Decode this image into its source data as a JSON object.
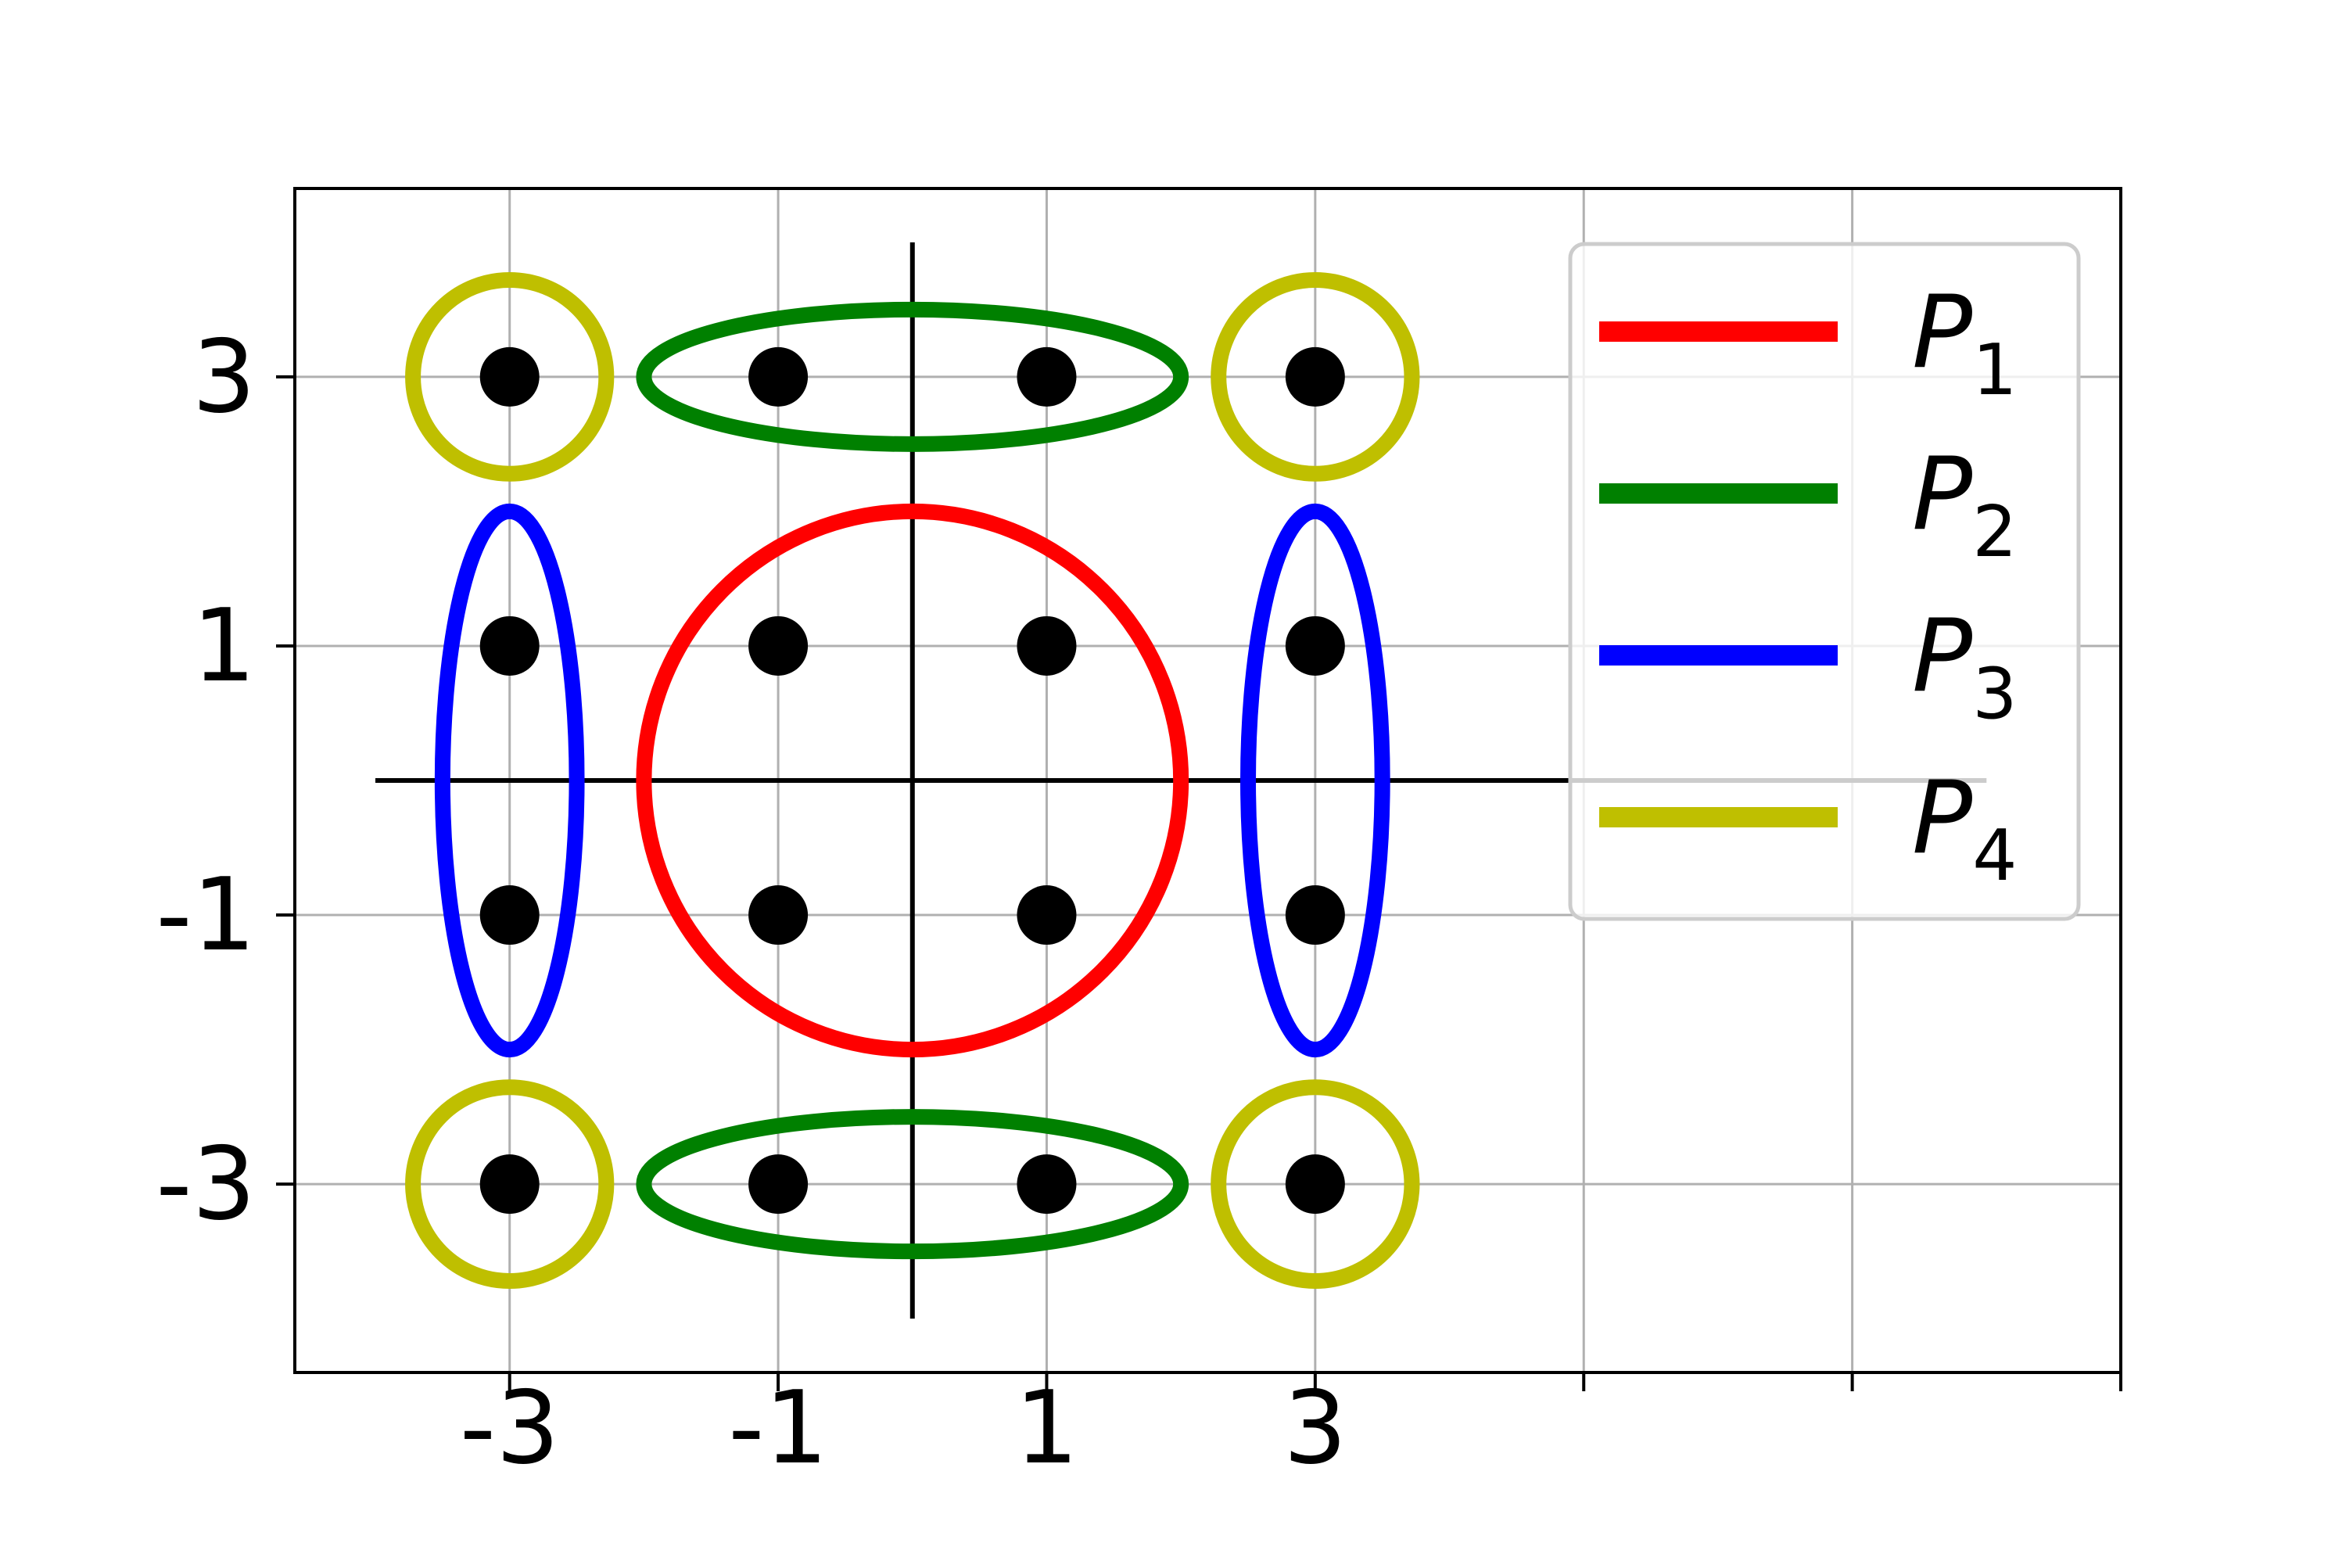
{
  "chart_data": {
    "type": "scatter",
    "title": "",
    "xlabel": "",
    "ylabel": "",
    "xlim": [
      -4.6,
      9
    ],
    "ylim": [
      -4.4,
      4.4
    ],
    "grid": true,
    "x_ticks": [
      -3,
      -1,
      1,
      3,
      5,
      7,
      9
    ],
    "x_tick_labels": [
      "-3",
      "-1",
      "1",
      "3",
      "",
      "",
      ""
    ],
    "y_ticks": [
      -3,
      -1,
      1,
      3
    ],
    "y_tick_labels": [
      "-3",
      "-1",
      "1",
      "3"
    ],
    "points": [
      {
        "x": -3,
        "y": 3
      },
      {
        "x": -1,
        "y": 3
      },
      {
        "x": 1,
        "y": 3
      },
      {
        "x": 3,
        "y": 3
      },
      {
        "x": -3,
        "y": 1
      },
      {
        "x": -1,
        "y": 1
      },
      {
        "x": 1,
        "y": 1
      },
      {
        "x": 3,
        "y": 1
      },
      {
        "x": -3,
        "y": -1
      },
      {
        "x": -1,
        "y": -1
      },
      {
        "x": 1,
        "y": -1
      },
      {
        "x": 3,
        "y": -1
      },
      {
        "x": -3,
        "y": -3
      },
      {
        "x": -1,
        "y": -3
      },
      {
        "x": 1,
        "y": -3
      },
      {
        "x": 3,
        "y": -3
      }
    ],
    "axis_lines": {
      "horizontal": {
        "y": 0,
        "x_from": -4,
        "x_to": 8
      },
      "vertical": {
        "x": 0,
        "y_from": -4,
        "y_to": 4
      }
    },
    "series": [
      {
        "name": "P",
        "subscript": "1",
        "color": "#ff0000",
        "regions": [
          {
            "cx": 0,
            "cy": 0,
            "rx": 2,
            "ry": 2
          }
        ]
      },
      {
        "name": "P",
        "subscript": "2",
        "color": "#008000",
        "regions": [
          {
            "cx": 0,
            "cy": 3,
            "rx": 2,
            "ry": 0.5
          },
          {
            "cx": 0,
            "cy": -3,
            "rx": 2,
            "ry": 0.5
          }
        ]
      },
      {
        "name": "P",
        "subscript": "3",
        "color": "#0000ff",
        "regions": [
          {
            "cx": -3,
            "cy": 0,
            "rx": 0.5,
            "ry": 2
          },
          {
            "cx": 3,
            "cy": 0,
            "rx": 0.5,
            "ry": 2
          }
        ]
      },
      {
        "name": "P",
        "subscript": "4",
        "color": "#bfbf00",
        "regions": [
          {
            "cx": -3,
            "cy": 3,
            "rx": 0.72,
            "ry": 0.72
          },
          {
            "cx": 3,
            "cy": 3,
            "rx": 0.72,
            "ry": 0.72
          },
          {
            "cx": -3,
            "cy": -3,
            "rx": 0.72,
            "ry": 0.72
          },
          {
            "cx": 3,
            "cy": -3,
            "rx": 0.72,
            "ry": 0.72
          }
        ]
      }
    ],
    "legend": {
      "position": "top-right"
    }
  }
}
